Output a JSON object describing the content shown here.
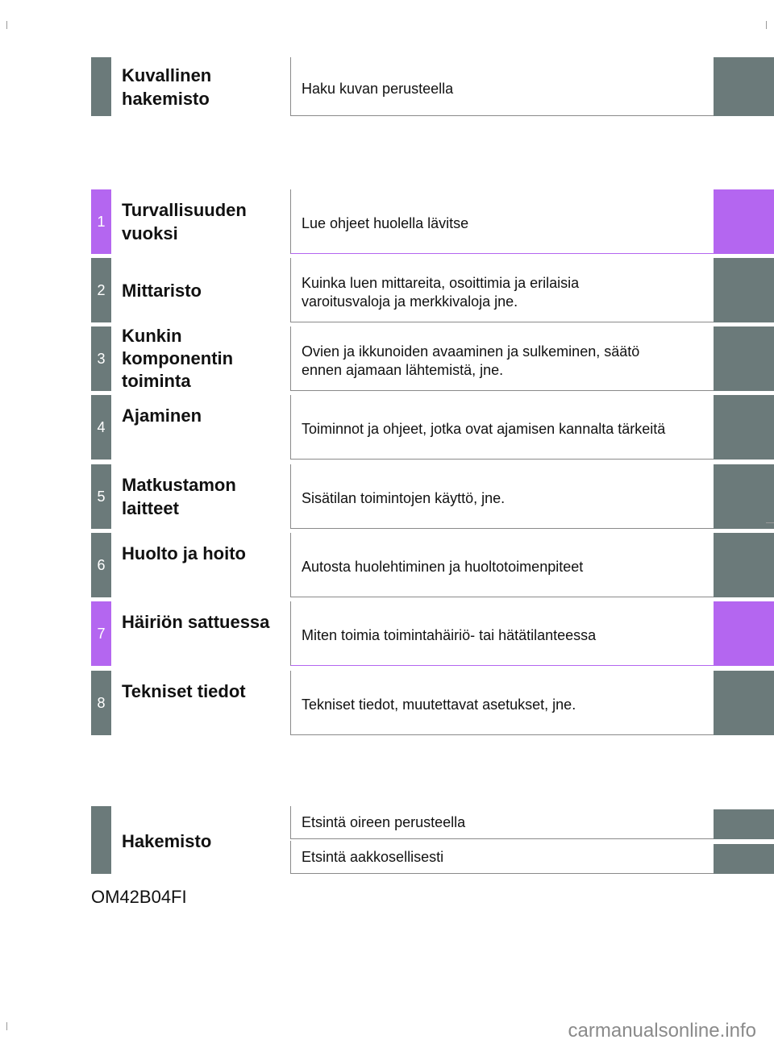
{
  "header_section": {
    "title": "Kuvallinen\nhakemisto",
    "description": "Haku kuvan perusteella"
  },
  "chapters": [
    {
      "number": "1",
      "title": "Turvallisuuden\nvuoksi",
      "description": "Lue ohjeet huolella lävitse"
    },
    {
      "number": "2",
      "title": "Mittaristo",
      "description": "Kuinka luen mittareita, osoittimia ja erilaisia\nvaroitusvaloja ja merkkivaloja jne."
    },
    {
      "number": "3",
      "title": "Kunkin\nkomponentin\ntoiminta",
      "description": "Ovien ja ikkunoiden avaaminen ja sulkeminen, säätö\nennen ajamaan lähtemistä, jne."
    },
    {
      "number": "4",
      "title": "Ajaminen",
      "description": "Toiminnot ja ohjeet, jotka ovat ajamisen kannalta tärkeitä"
    },
    {
      "number": "5",
      "title": "Matkustamon\nlaitteet",
      "description": "Sisätilan toimintojen käyttö, jne."
    },
    {
      "number": "6",
      "title": "Huolto ja hoito",
      "description": "Autosta huolehtiminen ja huoltotoimenpiteet"
    },
    {
      "number": "7",
      "title": "Häiriön sattuessa",
      "description": "Miten toimia toimintahäiriö- tai hätätilanteessa"
    },
    {
      "number": "8",
      "title": "Tekniset tiedot",
      "description": "Tekniset tiedot, muutettavat asetukset, jne."
    }
  ],
  "index_section": {
    "title": "Hakemisto",
    "items": [
      "Etsintä oireen perusteella",
      "Etsintä aakkosellisesti"
    ]
  },
  "document_code": "OM42B04FI",
  "watermark": "carmanualsonline.info",
  "colors": {
    "tab_gray": "#6b7a7a",
    "tab_violet": "#b466f0"
  }
}
